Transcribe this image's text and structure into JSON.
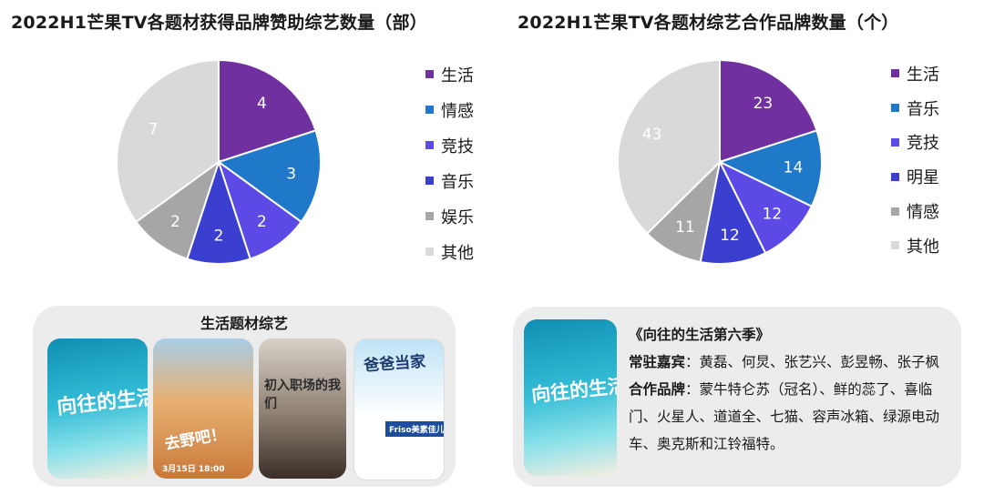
{
  "charts": {
    "left": {
      "title": "2022H1芒果TV各题材获得品牌赞助综艺数量（部）",
      "legend": [
        "生活",
        "情感",
        "竞技",
        "音乐",
        "娱乐",
        "其他"
      ]
    },
    "right": {
      "title": "2022H1芒果TV各题材综艺合作品牌数量（个）",
      "legend": [
        "生活",
        "音乐",
        "竞技",
        "明星",
        "情感",
        "其他"
      ]
    }
  },
  "chart_data": [
    {
      "type": "pie",
      "title": "2022H1芒果TV各题材获得品牌赞助综艺数量（部）",
      "categories": [
        "生活",
        "情感",
        "竞技",
        "音乐",
        "娱乐",
        "其他"
      ],
      "values": [
        4,
        3,
        2,
        2,
        2,
        7
      ],
      "colors": [
        "#7030a0",
        "#1f78c8",
        "#5b4ae6",
        "#3a3fd0",
        "#a6a6a6",
        "#d9d9d9"
      ],
      "legend_position": "right"
    },
    {
      "type": "pie",
      "title": "2022H1芒果TV各题材综艺合作品牌数量（个）",
      "categories": [
        "生活",
        "音乐",
        "竞技",
        "明星",
        "情感",
        "其他"
      ],
      "values": [
        23,
        14,
        12,
        12,
        11,
        43
      ],
      "colors": [
        "#7030a0",
        "#1f78c8",
        "#5b4ae6",
        "#3a3fd0",
        "#a6a6a6",
        "#d9d9d9"
      ],
      "legend_position": "right"
    }
  ],
  "left_card": {
    "title": "生活题材综艺",
    "posters": [
      {
        "text": "向往的生活",
        "colors": [
          "#1fa3c4",
          "#66d6e6"
        ]
      },
      {
        "text": "去野吧！",
        "caption": "3月15日 18:00",
        "colors": [
          "#d88d3a",
          "#8fb6d6"
        ]
      },
      {
        "text": "初入职场的我们",
        "colors": [
          "#4a3a33",
          "#cfc7bd"
        ]
      },
      {
        "text": "爸爸当家",
        "badge": "Friso美素佳儿",
        "colors": [
          "#e9f3fb",
          "#ffffff"
        ]
      }
    ]
  },
  "right_card": {
    "show_title": "《向往的生活第六季》",
    "guests_label": "常驻嘉宾",
    "guests": "：黄磊、何炅、张艺兴、彭昱畅、张子枫",
    "partners_label": "合作品牌",
    "partners": "：蒙牛特仑苏（冠名）、鲜的蕊了、喜临门、火星人、道道全、七猫、容声冰箱、绿源电动车、奥克斯和江铃福特。"
  }
}
